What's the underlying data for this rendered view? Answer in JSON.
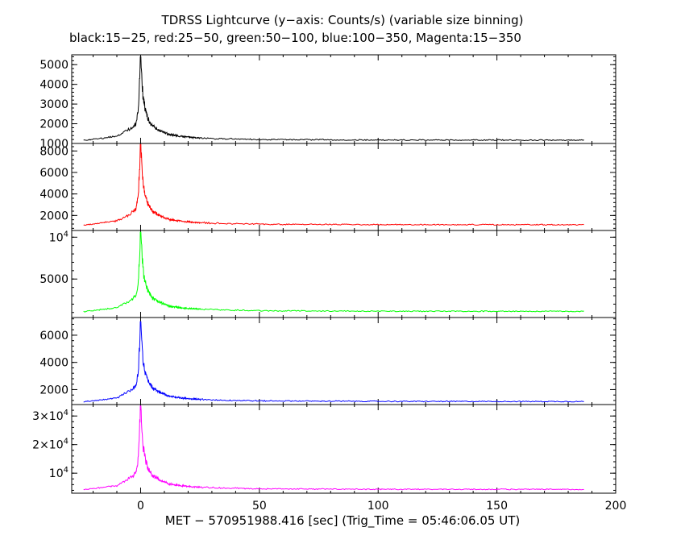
{
  "chart_data": {
    "type": "line",
    "title": "TDRSS Lightcurve (y−axis: Counts/s) (variable size binning)",
    "subtitle": "black:15−25, red:25−50, green:50−100, blue:100−350, Magenta:15−350",
    "xlabel": "MET − 570951988.416 [sec] (Trig_Time = 05:46:06.05 UT)",
    "xlim": [
      -29,
      200
    ],
    "x_ticks": [
      0,
      50,
      100,
      150,
      200
    ],
    "x_tick_labels": [
      "0",
      "50",
      "100",
      "150",
      "200"
    ],
    "grid": false,
    "series_shape": {
      "x": [
        -24,
        -10,
        -5,
        -2,
        -1,
        0,
        0.5,
        1,
        2,
        3,
        5,
        8,
        12,
        18,
        25,
        35,
        50,
        100,
        150,
        187
      ],
      "rel": [
        0.0,
        0.05,
        0.13,
        0.2,
        0.36,
        1.0,
        0.78,
        0.52,
        0.36,
        0.27,
        0.17,
        0.12,
        0.07,
        0.045,
        0.03,
        0.02,
        0.012,
        0.006,
        0.005,
        0.004
      ]
    },
    "panels": [
      {
        "name": "black:15−25",
        "color": "#000000",
        "ylim": [
          1000,
          5500
        ],
        "yticks": [
          1000,
          2000,
          3000,
          4000,
          5000
        ],
        "ytick_labels": [
          "1000",
          "2000",
          "3000",
          "4000",
          "5000"
        ],
        "baseline": 1150,
        "peak": 5400
      },
      {
        "name": "red:25−50",
        "color": "#ff0000",
        "ylim": [
          600,
          8700
        ],
        "yticks": [
          2000,
          4000,
          6000,
          8000
        ],
        "ytick_labels": [
          "2000",
          "4000",
          "6000",
          "8000"
        ],
        "baseline": 1100,
        "peak": 8600
      },
      {
        "name": "green:50−100",
        "color": "#00ff00",
        "ylim": [
          400,
          10800
        ],
        "yticks": [
          5000,
          10000
        ],
        "ytick_labels": [
          "5000",
          "10^4"
        ],
        "baseline": 1100,
        "peak": 10600
      },
      {
        "name": "blue:100−350",
        "color": "#0000ff",
        "ylim": [
          900,
          7300
        ],
        "yticks": [
          2000,
          4000,
          6000
        ],
        "ytick_labels": [
          "2000",
          "4000",
          "6000"
        ],
        "baseline": 1100,
        "peak": 7000
      },
      {
        "name": "Magenta:15−350",
        "color": "#ff00ff",
        "ylim": [
          3000,
          34000
        ],
        "yticks": [
          10000,
          20000,
          30000
        ],
        "ytick_labels": [
          "10^4",
          "2×10^4",
          "3×10^4"
        ],
        "baseline": 4200,
        "peak": 33500
      }
    ]
  }
}
